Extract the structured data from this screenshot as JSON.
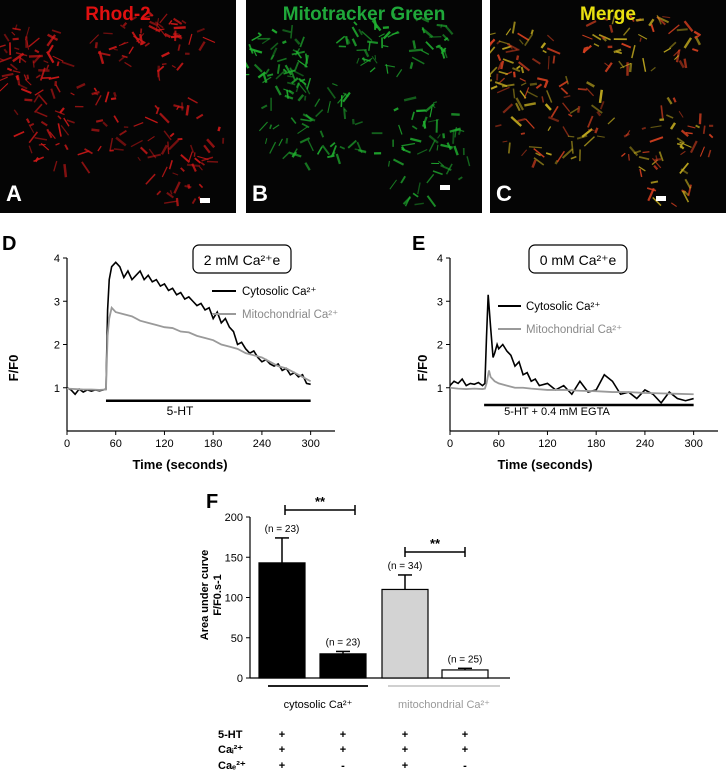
{
  "microscopy": [
    {
      "letter": "A",
      "title": "Rhod-2",
      "title_color": "#e01010",
      "tint": "#d01818"
    },
    {
      "letter": "B",
      "title": "Mitotracker Green",
      "title_color": "#1fa83a",
      "tint": "#20b030"
    },
    {
      "letter": "C",
      "title": "Merge",
      "title_color": "#e8e010",
      "tint": "#c8b020"
    }
  ],
  "panel_D": {
    "letter": "D",
    "condition_label": "2 mM Ca²⁺e",
    "stimulus_label": "5-HT",
    "legend": [
      "Cytosolic Ca²⁺",
      "Mitochondrial Ca²⁺"
    ],
    "xlabel": "Time (seconds)",
    "ylabel": "F/F0"
  },
  "panel_E": {
    "letter": "E",
    "condition_label": "0 mM Ca²⁺e",
    "stimulus_label": "5-HT + 0.4 mM  EGTA",
    "legend": [
      "Cytosolic Ca²⁺",
      "Mitochondrial Ca²⁺"
    ],
    "xlabel": "Time (seconds)",
    "ylabel": "F/F0"
  },
  "panel_F": {
    "letter": "F",
    "ylabel_line1": "Area under curve",
    "ylabel_line2": "F/F0.s-1",
    "group_labels": [
      "cytosolic Ca²⁺",
      "mitochondrial Ca²⁺"
    ],
    "significance": [
      "**",
      "**"
    ],
    "conditions": [
      {
        "label": "5-HT",
        "values": [
          "+",
          "+",
          "+",
          "+"
        ]
      },
      {
        "label": "Caᵢ²⁺",
        "values": [
          "+",
          "+",
          "+",
          "+"
        ]
      },
      {
        "label": "Caₑ²⁺",
        "values": [
          "+",
          "-",
          "+",
          "-"
        ]
      }
    ]
  },
  "chart_data": [
    {
      "type": "line",
      "title": "2 mM Ca²⁺e",
      "xlabel": "Time (seconds)",
      "ylabel": "F/F0",
      "xlim": [
        0,
        330
      ],
      "ylim": [
        0,
        4
      ],
      "xticks": [
        0,
        60,
        120,
        180,
        240,
        300
      ],
      "yticks": [
        1,
        2,
        3,
        4
      ],
      "stimulus": {
        "label": "5-HT",
        "start": 48,
        "end": 300,
        "y": 0.7
      },
      "series": [
        {
          "name": "Cytosolic Ca²⁺",
          "color": "#000000",
          "x": [
            0,
            5,
            10,
            15,
            20,
            25,
            30,
            35,
            40,
            45,
            48,
            50,
            52,
            55,
            60,
            65,
            70,
            75,
            80,
            85,
            90,
            95,
            100,
            105,
            110,
            115,
            120,
            125,
            130,
            135,
            140,
            145,
            150,
            155,
            160,
            165,
            170,
            175,
            180,
            185,
            190,
            195,
            200,
            205,
            210,
            215,
            220,
            225,
            230,
            235,
            240,
            245,
            250,
            255,
            260,
            265,
            270,
            275,
            280,
            285,
            290,
            295,
            300
          ],
          "y": [
            1.0,
            0.95,
            0.85,
            0.97,
            0.9,
            0.95,
            0.92,
            0.95,
            0.93,
            0.95,
            0.97,
            2.8,
            3.5,
            3.8,
            3.9,
            3.8,
            3.55,
            3.7,
            3.5,
            3.6,
            3.7,
            3.5,
            3.6,
            3.45,
            3.5,
            3.35,
            3.4,
            3.25,
            3.3,
            3.15,
            3.2,
            3.05,
            3.1,
            3.0,
            2.9,
            2.95,
            2.8,
            2.85,
            2.6,
            2.75,
            2.5,
            2.6,
            2.4,
            2.3,
            2.0,
            2.05,
            1.9,
            1.8,
            1.85,
            1.7,
            1.6,
            1.65,
            1.55,
            1.5,
            1.55,
            1.4,
            1.45,
            1.3,
            1.35,
            1.25,
            1.3,
            1.1,
            1.08
          ]
        },
        {
          "name": "Mitochondrial Ca²⁺",
          "color": "#9a9a9a",
          "x": [
            0,
            10,
            20,
            30,
            40,
            48,
            50,
            52,
            55,
            60,
            70,
            80,
            90,
            100,
            110,
            120,
            130,
            140,
            150,
            160,
            170,
            180,
            190,
            200,
            210,
            220,
            230,
            240,
            250,
            260,
            270,
            280,
            290,
            300
          ],
          "y": [
            0.98,
            0.97,
            0.96,
            0.96,
            0.95,
            0.96,
            2.2,
            2.6,
            2.85,
            2.75,
            2.7,
            2.65,
            2.55,
            2.5,
            2.45,
            2.4,
            2.38,
            2.3,
            2.28,
            2.2,
            2.15,
            2.1,
            2.0,
            1.95,
            1.9,
            1.8,
            1.75,
            1.7,
            1.6,
            1.5,
            1.45,
            1.35,
            1.25,
            1.15
          ]
        }
      ]
    },
    {
      "type": "line",
      "title": "0 mM Ca²⁺e",
      "xlabel": "Time (seconds)",
      "ylabel": "F/F0",
      "xlim": [
        0,
        330
      ],
      "ylim": [
        0,
        4
      ],
      "xticks": [
        0,
        60,
        120,
        180,
        240,
        300
      ],
      "yticks": [
        1,
        2,
        3,
        4
      ],
      "stimulus": {
        "label": "5-HT + 0.4 mM  EGTA",
        "start": 42,
        "end": 300,
        "y": 0.6
      },
      "series": [
        {
          "name": "Cytosolic Ca²⁺",
          "color": "#000000",
          "x": [
            0,
            5,
            10,
            15,
            20,
            25,
            30,
            35,
            40,
            43,
            45,
            47,
            50,
            53,
            55,
            58,
            60,
            65,
            70,
            75,
            80,
            85,
            90,
            95,
            100,
            105,
            110,
            120,
            130,
            140,
            150,
            160,
            170,
            180,
            190,
            200,
            210,
            220,
            230,
            240,
            250,
            260,
            270,
            280,
            290,
            300
          ],
          "y": [
            1.05,
            1.15,
            1.1,
            1.2,
            1.05,
            1.1,
            1.08,
            1.12,
            1.05,
            1.1,
            2.2,
            3.15,
            2.4,
            1.7,
            1.8,
            2.0,
            1.9,
            2.0,
            1.85,
            1.75,
            1.5,
            1.6,
            1.3,
            1.35,
            1.15,
            1.2,
            1.05,
            1.1,
            0.95,
            1.05,
            0.85,
            1.15,
            0.9,
            0.95,
            1.3,
            1.15,
            0.85,
            0.9,
            0.75,
            0.95,
            0.85,
            0.65,
            0.9,
            0.75,
            0.7,
            0.75
          ]
        },
        {
          "name": "Mitochondrial Ca²⁺",
          "color": "#9a9a9a",
          "x": [
            0,
            10,
            20,
            30,
            40,
            43,
            45,
            48,
            50,
            55,
            60,
            70,
            80,
            90,
            100,
            120,
            140,
            160,
            180,
            200,
            220,
            240,
            260,
            280,
            300
          ],
          "y": [
            1.0,
            0.98,
            0.97,
            0.98,
            0.97,
            0.98,
            1.1,
            1.4,
            1.25,
            1.15,
            1.1,
            1.05,
            1.0,
            1.0,
            0.98,
            0.95,
            0.95,
            0.93,
            0.92,
            0.9,
            0.9,
            0.88,
            0.87,
            0.86,
            0.85
          ]
        }
      ]
    },
    {
      "type": "bar",
      "ylabel": "Area under curve F/F0.s-1",
      "ylim": [
        0,
        200
      ],
      "yticks": [
        0,
        50,
        100,
        150,
        200
      ],
      "categories": [
        "cytosolic +Caₑ²⁺",
        "cytosolic -Caₑ²⁺",
        "mitochondrial +Caₑ²⁺",
        "mitochondrial -Caₑ²⁺"
      ],
      "values": [
        143,
        30,
        110,
        10
      ],
      "errors": [
        31,
        3,
        18,
        2
      ],
      "n_labels": [
        "(n = 23)",
        "(n = 23)",
        "(n = 34)",
        "(n = 25)"
      ],
      "colors": [
        "#000000",
        "#000000",
        "#d3d3d3",
        "#ffffff"
      ]
    }
  ]
}
